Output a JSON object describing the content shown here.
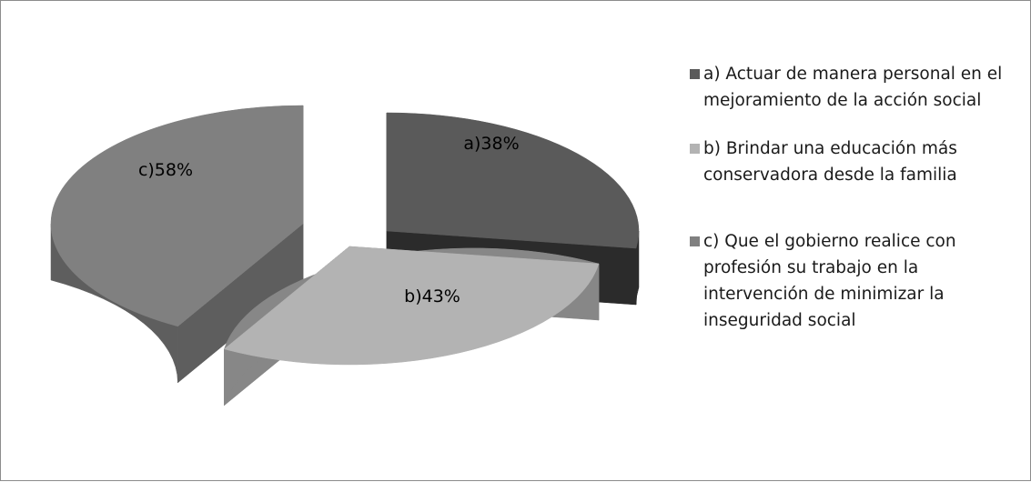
{
  "chart_data": {
    "type": "pie",
    "style": "3d-exploded",
    "slices": [
      {
        "key": "a",
        "label": "a)38%",
        "value": 38,
        "legend": "a) Actuar de manera personal en el mejoramiento de la acción social",
        "color": "#5a5a5a",
        "side_color": "#2b2b2b"
      },
      {
        "key": "b",
        "label": "b)43%",
        "value": 43,
        "legend": " b) Brindar una educación más conservadora desde la familia",
        "color": "#b3b3b3",
        "side_color": "#878787"
      },
      {
        "key": "c",
        "label": "c)58%",
        "value": 58,
        "legend": "c) Que el gobierno realice con profesión  su trabajo en la intervención  de minimizar la inseguridad social",
        "color": "#808080",
        "side_color": "#5e5e5e"
      }
    ],
    "legend_position": "right"
  }
}
